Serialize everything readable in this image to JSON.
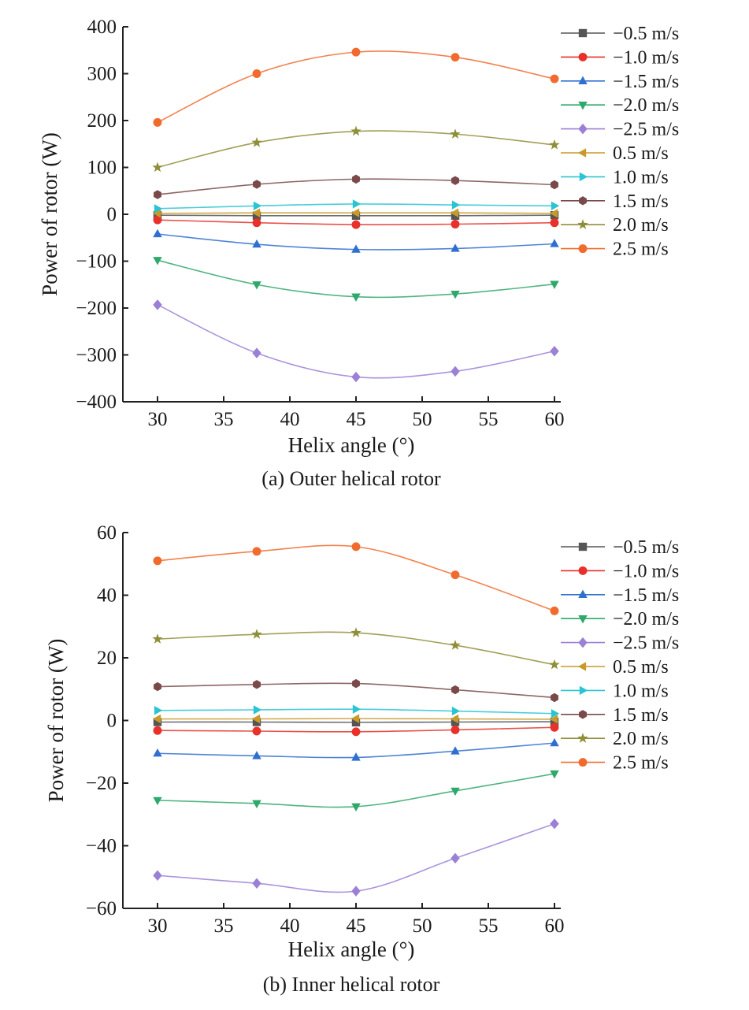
{
  "figure": {
    "legend_labels": [
      "-0.5 m/s",
      "-1.0 m/s",
      "-1.5 m/s",
      "-2.0 m/s",
      "-2.5 m/s",
      "0.5 m/s",
      "1.0 m/s",
      "1.5 m/s",
      "2.0 m/s",
      "2.5 m/s"
    ]
  },
  "chart_data": [
    {
      "type": "line",
      "caption": "(a) Outer helical rotor",
      "xlabel": "Helix angle (°)",
      "ylabel": "Power of rotor (W)",
      "xlim": [
        27.5,
        62
      ],
      "ylim": [
        -400,
        400
      ],
      "xticks": [
        30,
        35,
        40,
        45,
        50,
        55,
        60
      ],
      "yticks": [
        -400,
        -300,
        -200,
        -100,
        0,
        100,
        200,
        300,
        400
      ],
      "x": [
        30,
        37.5,
        45,
        52.5,
        60
      ],
      "legend_position": "top-right",
      "grid": false,
      "series": [
        {
          "name": "−0.5 m/s",
          "color": "#555555",
          "marker": "square",
          "values": [
            -2,
            -3,
            -3,
            -3,
            -2
          ]
        },
        {
          "name": "−1.0 m/s",
          "color": "#e8312a",
          "marker": "circle",
          "values": [
            -12,
            -18,
            -22,
            -21,
            -18
          ]
        },
        {
          "name": "−1.5 m/s",
          "color": "#2f6fd0",
          "marker": "triangle-up",
          "values": [
            -42,
            -64,
            -75,
            -73,
            -63
          ]
        },
        {
          "name": "−2.0 m/s",
          "color": "#2fa86b",
          "marker": "triangle-down",
          "values": [
            -98,
            -150,
            -176,
            -170,
            -149
          ]
        },
        {
          "name": "−2.5 m/s",
          "color": "#9b80d6",
          "marker": "diamond",
          "values": [
            -193,
            -296,
            -347,
            -335,
            -292
          ]
        },
        {
          "name": "0.5 m/s",
          "color": "#c99a2a",
          "marker": "triangle-left",
          "values": [
            2,
            3,
            3,
            3,
            2
          ]
        },
        {
          "name": "1.0 m/s",
          "color": "#2bc4d2",
          "marker": "triangle-right",
          "values": [
            12,
            18,
            22,
            20,
            18
          ]
        },
        {
          "name": "1.5 m/s",
          "color": "#7a4a4a",
          "marker": "hexagon",
          "values": [
            42,
            64,
            75,
            72,
            63
          ]
        },
        {
          "name": "2.0 m/s",
          "color": "#8f8f3a",
          "marker": "star",
          "values": [
            100,
            153,
            177,
            171,
            148
          ]
        },
        {
          "name": "2.5 m/s",
          "color": "#f26b2e",
          "marker": "circle",
          "values": [
            196,
            300,
            346,
            335,
            289
          ]
        }
      ]
    },
    {
      "type": "line",
      "caption": "(b) Inner helical rotor",
      "xlabel": "Helix angle (°)",
      "ylabel": "Power of rotor (W)",
      "xlim": [
        27.5,
        62
      ],
      "ylim": [
        -60,
        60
      ],
      "xticks": [
        30,
        35,
        40,
        45,
        50,
        55,
        60
      ],
      "yticks": [
        -60,
        -40,
        -20,
        0,
        20,
        40,
        60
      ],
      "x": [
        30,
        37.5,
        45,
        52.5,
        60
      ],
      "legend_position": "top-right",
      "grid": false,
      "series": [
        {
          "name": "−0.5 m/s",
          "color": "#555555",
          "marker": "square",
          "values": [
            -0.5,
            -0.5,
            -0.6,
            -0.5,
            -0.4
          ]
        },
        {
          "name": "−1.0 m/s",
          "color": "#e8312a",
          "marker": "circle",
          "values": [
            -3.2,
            -3.4,
            -3.6,
            -3.0,
            -2.2
          ]
        },
        {
          "name": "−1.5 m/s",
          "color": "#2f6fd0",
          "marker": "triangle-up",
          "values": [
            -10.5,
            -11.3,
            -11.8,
            -9.8,
            -7.2
          ]
        },
        {
          "name": "−2.0 m/s",
          "color": "#2fa86b",
          "marker": "triangle-down",
          "values": [
            -25.5,
            -26.5,
            -27.5,
            -22.5,
            -17
          ]
        },
        {
          "name": "−2.5 m/s",
          "color": "#9b80d6",
          "marker": "diamond",
          "values": [
            -49.5,
            -52,
            -54.5,
            -44,
            -33
          ]
        },
        {
          "name": "0.5 m/s",
          "color": "#c99a2a",
          "marker": "triangle-left",
          "values": [
            0.5,
            0.5,
            0.6,
            0.5,
            0.4
          ]
        },
        {
          "name": "1.0 m/s",
          "color": "#2bc4d2",
          "marker": "triangle-right",
          "values": [
            3.2,
            3.4,
            3.6,
            3.0,
            2.2
          ]
        },
        {
          "name": "1.5 m/s",
          "color": "#7a4a4a",
          "marker": "hexagon",
          "values": [
            10.8,
            11.5,
            11.8,
            9.8,
            7.3
          ]
        },
        {
          "name": "2.0 m/s",
          "color": "#8f8f3a",
          "marker": "star",
          "values": [
            26,
            27.5,
            28,
            24,
            17.8
          ]
        },
        {
          "name": "2.5 m/s",
          "color": "#f26b2e",
          "marker": "circle",
          "values": [
            51,
            54,
            55.5,
            46.5,
            35
          ]
        }
      ]
    }
  ]
}
